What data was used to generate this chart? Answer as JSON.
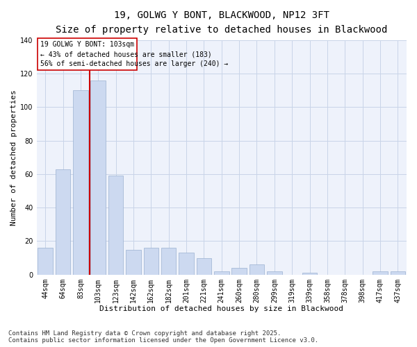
{
  "title_line1": "19, GOLWG Y BONT, BLACKWOOD, NP12 3FT",
  "title_line2": "Size of property relative to detached houses in Blackwood",
  "xlabel": "Distribution of detached houses by size in Blackwood",
  "ylabel": "Number of detached properties",
  "categories": [
    "44sqm",
    "64sqm",
    "83sqm",
    "103sqm",
    "123sqm",
    "142sqm",
    "162sqm",
    "182sqm",
    "201sqm",
    "221sqm",
    "241sqm",
    "260sqm",
    "280sqm",
    "299sqm",
    "319sqm",
    "339sqm",
    "358sqm",
    "378sqm",
    "398sqm",
    "417sqm",
    "437sqm"
  ],
  "values": [
    16,
    63,
    110,
    116,
    59,
    15,
    16,
    16,
    13,
    10,
    2,
    4,
    6,
    2,
    0,
    1,
    0,
    0,
    0,
    2,
    2
  ],
  "bar_color": "#ccd9f0",
  "bar_edge_color": "#9ab0d0",
  "highlight_label": "19 GOLWG Y BONT: 103sqm",
  "stat1": "← 43% of detached houses are smaller (183)",
  "stat2": "56% of semi-detached houses are larger (240) →",
  "annotation_box_color": "#cc0000",
  "vline_color": "#cc0000",
  "grid_color": "#c8d4e8",
  "background_color": "#eef2fb",
  "ylim": [
    0,
    140
  ],
  "yticks": [
    0,
    20,
    40,
    60,
    80,
    100,
    120,
    140
  ],
  "footnote": "Contains HM Land Registry data © Crown copyright and database right 2025.\nContains public sector information licensed under the Open Government Licence v3.0.",
  "title_fontsize": 10,
  "subtitle_fontsize": 9,
  "axis_label_fontsize": 8,
  "tick_fontsize": 7,
  "annotation_fontsize": 7,
  "footnote_fontsize": 6.5,
  "vline_x": 2.5
}
